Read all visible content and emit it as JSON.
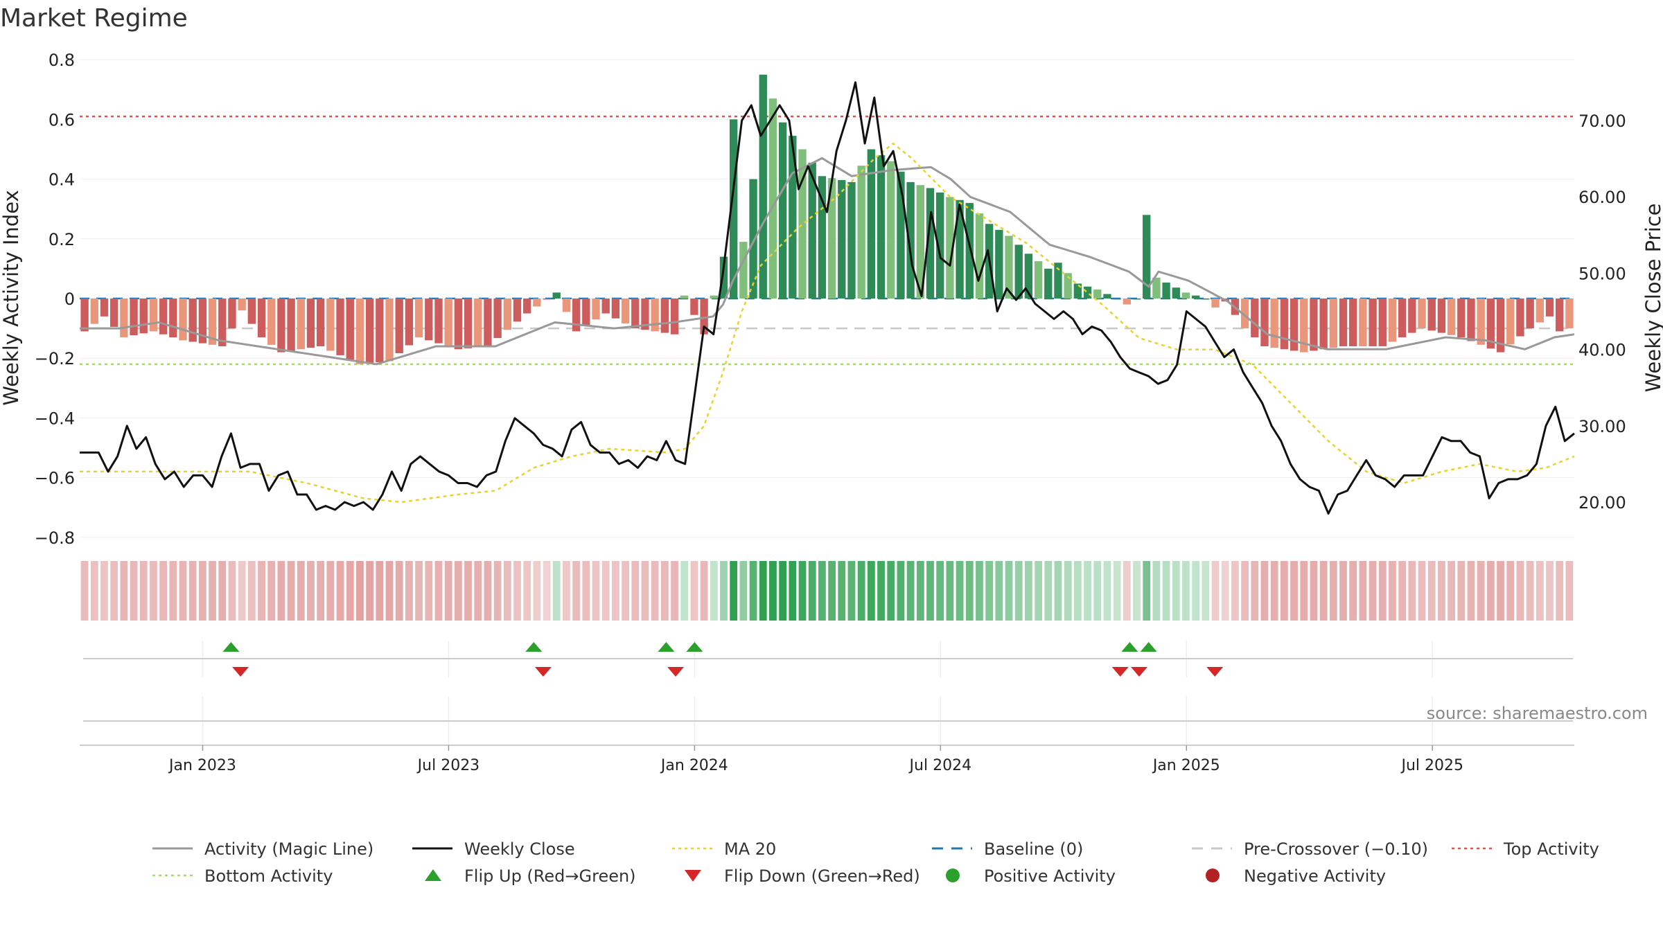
{
  "title": "Market Regime",
  "source": "source: sharemaestro.com",
  "colors": {
    "pos_dark": "#2e8b57",
    "pos_light": "#7fbf7b",
    "neg_dark": "#cd5c5c",
    "neg_light": "#e9967a",
    "magic_line": "#999999",
    "close": "#111111",
    "ma20": "#e8d22e",
    "baseline": "#1f77b4",
    "pre_crossover": "#c8c8c8",
    "top_activity": "#d9534f",
    "bottom_activity": "#a6d96a",
    "flip_up": "#2ca02c",
    "flip_down": "#d62728"
  },
  "chart_data": {
    "type": "bar",
    "title": "Market Regime",
    "left_axis": {
      "label": "Weekly Activity Index",
      "ylim": [
        -0.85,
        0.8
      ],
      "ticks": [
        "0.8",
        "0.6",
        "0.4",
        "0.2",
        "0",
        "−0.2",
        "−0.4",
        "−0.6",
        "−0.8"
      ],
      "tick_values": [
        0.8,
        0.6,
        0.4,
        0.2,
        0,
        -0.2,
        -0.4,
        -0.6,
        -0.8
      ]
    },
    "right_axis": {
      "label": "Weekly Close Price",
      "ticks": [
        "70.00",
        "60.00",
        "50.00",
        "40.00",
        "30.00",
        "20.00"
      ],
      "tick_values": [
        70,
        60,
        50,
        40,
        30,
        20
      ]
    },
    "x_axis": {
      "ticks": [
        "Jan 2023",
        "Jul 2023",
        "Jan 2024",
        "Jul 2024",
        "Jan 2025",
        "Jul 2025"
      ],
      "tick_weeks": [
        13,
        39,
        65,
        91,
        117,
        143
      ]
    },
    "reference_lines": {
      "top_activity": 0.61,
      "bottom_activity": -0.22,
      "pre_crossover": -0.1,
      "baseline": 0
    },
    "activity_control_points": [
      [
        0,
        -0.11
      ],
      [
        2,
        -0.06
      ],
      [
        4,
        -0.13
      ],
      [
        7,
        -0.11
      ],
      [
        10,
        -0.14
      ],
      [
        14,
        -0.16
      ],
      [
        16,
        -0.04
      ],
      [
        18,
        -0.13
      ],
      [
        20,
        -0.18
      ],
      [
        24,
        -0.16
      ],
      [
        28,
        -0.22
      ],
      [
        31,
        -0.21
      ],
      [
        34,
        -0.13
      ],
      [
        38,
        -0.17
      ],
      [
        41,
        -0.16
      ],
      [
        45,
        -0.05
      ],
      [
        48,
        0.02
      ],
      [
        50,
        -0.11
      ],
      [
        53,
        -0.05
      ],
      [
        56,
        -0.1
      ],
      [
        60,
        -0.12
      ],
      [
        61,
        0.01
      ],
      [
        63,
        -0.12
      ],
      [
        65,
        0.14
      ],
      [
        66,
        0.6
      ],
      [
        67,
        0.19
      ],
      [
        68,
        0.4
      ],
      [
        69,
        0.75
      ],
      [
        71,
        0.59
      ],
      [
        73,
        0.5
      ],
      [
        75,
        0.41
      ],
      [
        78,
        0.39
      ],
      [
        80,
        0.5
      ],
      [
        82,
        0.46
      ],
      [
        84,
        0.39
      ],
      [
        86,
        0.37
      ],
      [
        88,
        0.34
      ],
      [
        90,
        0.32
      ],
      [
        92,
        0.25
      ],
      [
        94,
        0.21
      ],
      [
        96,
        0.15
      ],
      [
        98,
        0.1
      ],
      [
        99,
        0.12
      ],
      [
        101,
        0.05
      ],
      [
        103,
        0.03
      ],
      [
        105,
        0.0
      ],
      [
        106,
        -0.02
      ],
      [
        107,
        0.0
      ],
      [
        108,
        0.28
      ],
      [
        109,
        0.07
      ],
      [
        112,
        0.02
      ],
      [
        114,
        0.0
      ],
      [
        115,
        -0.03
      ],
      [
        116,
        -0.01
      ],
      [
        118,
        -0.1
      ],
      [
        120,
        -0.16
      ],
      [
        124,
        -0.18
      ],
      [
        128,
        -0.16
      ],
      [
        132,
        -0.16
      ],
      [
        136,
        -0.1
      ],
      [
        140,
        -0.13
      ],
      [
        144,
        -0.18
      ],
      [
        147,
        -0.1
      ],
      [
        149,
        -0.06
      ],
      [
        150,
        -0.11
      ],
      [
        151,
        -0.1
      ]
    ],
    "magic_line_control_points": [
      [
        0,
        -0.1
      ],
      [
        4,
        -0.1
      ],
      [
        8,
        -0.08
      ],
      [
        14,
        -0.14
      ],
      [
        20,
        -0.17
      ],
      [
        26,
        -0.2
      ],
      [
        30,
        -0.22
      ],
      [
        36,
        -0.16
      ],
      [
        42,
        -0.16
      ],
      [
        48,
        -0.08
      ],
      [
        54,
        -0.1
      ],
      [
        60,
        -0.08
      ],
      [
        64,
        -0.06
      ],
      [
        65,
        -0.02
      ],
      [
        66,
        0.06
      ],
      [
        69,
        0.25
      ],
      [
        72,
        0.42
      ],
      [
        75,
        0.47
      ],
      [
        78,
        0.41
      ],
      [
        82,
        0.43
      ],
      [
        86,
        0.44
      ],
      [
        88,
        0.4
      ],
      [
        90,
        0.34
      ],
      [
        94,
        0.29
      ],
      [
        98,
        0.18
      ],
      [
        102,
        0.14
      ],
      [
        106,
        0.09
      ],
      [
        108,
        0.04
      ],
      [
        109,
        0.09
      ],
      [
        112,
        0.06
      ],
      [
        116,
        -0.01
      ],
      [
        120,
        -0.12
      ],
      [
        126,
        -0.17
      ],
      [
        132,
        -0.17
      ],
      [
        138,
        -0.13
      ],
      [
        142,
        -0.14
      ],
      [
        146,
        -0.17
      ],
      [
        149,
        -0.13
      ],
      [
        151,
        -0.12
      ]
    ],
    "weekly_close_control_points": [
      [
        0,
        26.5
      ],
      [
        2,
        26.5
      ],
      [
        3,
        24.0
      ],
      [
        4,
        26.0
      ],
      [
        5,
        30.0
      ],
      [
        6,
        27.0
      ],
      [
        7,
        28.5
      ],
      [
        8,
        25.0
      ],
      [
        9,
        23.0
      ],
      [
        10,
        24.0
      ],
      [
        11,
        22.0
      ],
      [
        12,
        23.5
      ],
      [
        13,
        23.5
      ],
      [
        14,
        22.0
      ],
      [
        15,
        26.0
      ],
      [
        16,
        29.0
      ],
      [
        17,
        24.5
      ],
      [
        18,
        25.0
      ],
      [
        19,
        25.0
      ],
      [
        20,
        21.5
      ],
      [
        21,
        23.5
      ],
      [
        22,
        24.0
      ],
      [
        23,
        21.0
      ],
      [
        24,
        21.0
      ],
      [
        25,
        19.0
      ],
      [
        26,
        19.5
      ],
      [
        27,
        19.0
      ],
      [
        28,
        20.0
      ],
      [
        29,
        19.5
      ],
      [
        30,
        20.0
      ],
      [
        31,
        19.0
      ],
      [
        32,
        21.0
      ],
      [
        33,
        24.0
      ],
      [
        34,
        21.5
      ],
      [
        35,
        25.0
      ],
      [
        36,
        26.0
      ],
      [
        37,
        25.0
      ],
      [
        38,
        24.0
      ],
      [
        39,
        23.5
      ],
      [
        40,
        22.5
      ],
      [
        41,
        22.5
      ],
      [
        42,
        22.0
      ],
      [
        43,
        23.5
      ],
      [
        44,
        24.0
      ],
      [
        45,
        28.0
      ],
      [
        46,
        31.0
      ],
      [
        47,
        30.0
      ],
      [
        48,
        29.0
      ],
      [
        49,
        27.5
      ],
      [
        50,
        27.0
      ],
      [
        51,
        26.0
      ],
      [
        52,
        29.5
      ],
      [
        53,
        30.5
      ],
      [
        54,
        27.5
      ],
      [
        55,
        26.5
      ],
      [
        56,
        26.5
      ],
      [
        57,
        25.0
      ],
      [
        58,
        25.5
      ],
      [
        59,
        24.5
      ],
      [
        60,
        26.0
      ],
      [
        61,
        25.5
      ],
      [
        62,
        28.0
      ],
      [
        63,
        25.5
      ],
      [
        64,
        25.0
      ],
      [
        65,
        34.0
      ],
      [
        66,
        43.0
      ],
      [
        67,
        42.0
      ],
      [
        68,
        50.0
      ],
      [
        69,
        60.0
      ],
      [
        70,
        70.0
      ],
      [
        71,
        72.0
      ],
      [
        72,
        68.0
      ],
      [
        73,
        70.0
      ],
      [
        74,
        72.0
      ],
      [
        75,
        70.0
      ],
      [
        76,
        61.0
      ],
      [
        77,
        64.0
      ],
      [
        78,
        61.0
      ],
      [
        79,
        58.0
      ],
      [
        80,
        66.0
      ],
      [
        81,
        70.0
      ],
      [
        82,
        75.0
      ],
      [
        83,
        67.0
      ],
      [
        84,
        73.0
      ],
      [
        85,
        64.0
      ],
      [
        86,
        66.0
      ],
      [
        87,
        60.0
      ],
      [
        88,
        51.0
      ],
      [
        89,
        47.0
      ],
      [
        90,
        58.0
      ],
      [
        91,
        52.0
      ],
      [
        92,
        51.0
      ],
      [
        93,
        59.0
      ],
      [
        94,
        54.0
      ],
      [
        95,
        49.0
      ],
      [
        96,
        53.0
      ],
      [
        97,
        45.0
      ],
      [
        98,
        48.0
      ],
      [
        99,
        46.5
      ],
      [
        100,
        48.0
      ],
      [
        101,
        46.0
      ],
      [
        102,
        45.0
      ],
      [
        103,
        44.0
      ],
      [
        104,
        45.0
      ],
      [
        105,
        44.0
      ],
      [
        106,
        42.0
      ],
      [
        107,
        43.0
      ],
      [
        108,
        42.5
      ],
      [
        109,
        41.0
      ],
      [
        110,
        39.0
      ],
      [
        111,
        37.5
      ],
      [
        112,
        37.0
      ],
      [
        113,
        36.5
      ],
      [
        114,
        35.5
      ],
      [
        115,
        36.0
      ],
      [
        116,
        38.0
      ],
      [
        117,
        45.0
      ],
      [
        118,
        44.0
      ],
      [
        119,
        43.0
      ],
      [
        120,
        41.0
      ],
      [
        121,
        39.0
      ],
      [
        122,
        40.0
      ],
      [
        123,
        37.0
      ],
      [
        124,
        35.0
      ],
      [
        125,
        33.0
      ],
      [
        126,
        30.0
      ],
      [
        127,
        28.0
      ],
      [
        128,
        25.0
      ],
      [
        129,
        23.0
      ],
      [
        130,
        22.0
      ],
      [
        131,
        21.5
      ],
      [
        132,
        18.5
      ],
      [
        133,
        21.0
      ],
      [
        134,
        21.5
      ],
      [
        135,
        23.5
      ],
      [
        136,
        25.5
      ],
      [
        137,
        23.5
      ],
      [
        138,
        23.0
      ],
      [
        139,
        22.0
      ],
      [
        140,
        23.5
      ],
      [
        141,
        23.5
      ],
      [
        142,
        23.5
      ],
      [
        143,
        26.0
      ],
      [
        144,
        28.5
      ],
      [
        145,
        28.0
      ],
      [
        146,
        28.0
      ],
      [
        147,
        26.5
      ],
      [
        148,
        26.0
      ],
      [
        149,
        20.5
      ],
      [
        150,
        22.5
      ],
      [
        151,
        23.0
      ],
      [
        152,
        23.0
      ],
      [
        153,
        23.5
      ],
      [
        154,
        25.0
      ],
      [
        155,
        30.0
      ],
      [
        156,
        32.5
      ],
      [
        157,
        28.0
      ],
      [
        158,
        29.0
      ]
    ],
    "ma20_control_points": [
      [
        0,
        24.0
      ],
      [
        8,
        24.0
      ],
      [
        18,
        24.0
      ],
      [
        24,
        22.5
      ],
      [
        30,
        20.5
      ],
      [
        34,
        20.0
      ],
      [
        40,
        21.0
      ],
      [
        44,
        21.5
      ],
      [
        48,
        24.5
      ],
      [
        52,
        26.0
      ],
      [
        56,
        27.0
      ],
      [
        62,
        26.5
      ],
      [
        64,
        27.0
      ],
      [
        66,
        30.0
      ],
      [
        68,
        37.0
      ],
      [
        70,
        45.0
      ],
      [
        72,
        51.0
      ],
      [
        76,
        56.0
      ],
      [
        80,
        60.0
      ],
      [
        84,
        65.0
      ],
      [
        86,
        67.0
      ],
      [
        88,
        65.0
      ],
      [
        92,
        60.0
      ],
      [
        96,
        57.0
      ],
      [
        100,
        54.0
      ],
      [
        104,
        50.0
      ],
      [
        108,
        46.0
      ],
      [
        112,
        41.5
      ],
      [
        116,
        40.0
      ],
      [
        120,
        40.0
      ],
      [
        124,
        38.0
      ],
      [
        128,
        33.0
      ],
      [
        132,
        28.0
      ],
      [
        136,
        24.0
      ],
      [
        140,
        22.5
      ],
      [
        144,
        24.0
      ],
      [
        148,
        25.0
      ],
      [
        152,
        24.0
      ],
      [
        155,
        24.5
      ],
      [
        158,
        26.0
      ]
    ],
    "flip_up_weeks": [
      16,
      48,
      62,
      65,
      111,
      113
    ],
    "flip_down_weeks": [
      17,
      49,
      63,
      110,
      112,
      120
    ],
    "legend_entries": [
      {
        "label": "Activity (Magic Line)",
        "kind": "solid",
        "color": "#999999"
      },
      {
        "label": "Weekly Close",
        "kind": "solid",
        "color": "#111111"
      },
      {
        "label": "MA 20",
        "kind": "dotted",
        "color": "#e8d22e"
      },
      {
        "label": "Baseline (0)",
        "kind": "dashed",
        "color": "#1f77b4"
      },
      {
        "label": "Pre-Crossover (−0.10)",
        "kind": "dashed",
        "color": "#c8c8c8"
      },
      {
        "label": "Top Activity",
        "kind": "dotted",
        "color": "#d9534f"
      },
      {
        "label": "Bottom Activity",
        "kind": "dotted",
        "color": "#a6d96a"
      },
      {
        "label": "Flip Up (Red→Green)",
        "kind": "triangle-up",
        "color": "#2ca02c"
      },
      {
        "label": "Flip Down (Green→Red)",
        "kind": "triangle-down",
        "color": "#d62728"
      },
      {
        "label": "Positive Activity",
        "kind": "circle",
        "color": "#2ca02c"
      },
      {
        "label": "Negative Activity",
        "kind": "circle",
        "color": "#b22222"
      }
    ]
  }
}
